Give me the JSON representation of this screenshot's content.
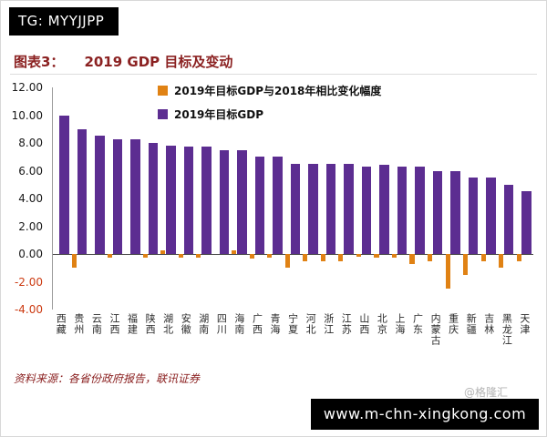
{
  "tg_badge": "TG: MYYJJPP",
  "footer_url": "www.m-chn-xingkong.com",
  "chart": {
    "label_prefix": "图表3：",
    "title": "2019 GDP 目标及变动",
    "source": "资料来源：各省份政府报告，联讯证券",
    "watermark": "@格隆汇"
  },
  "chart_data": {
    "type": "bar",
    "title": "2019 GDP 目标及变动",
    "xlabel": "",
    "ylabel": "",
    "ylim": [
      -4,
      12
    ],
    "yticks": [
      12,
      10,
      8,
      6,
      4,
      2,
      0,
      -2,
      -4
    ],
    "ytick_labels": [
      "12.00",
      "10.00",
      "8.00",
      "6.00",
      "4.00",
      "2.00",
      "0.00",
      "-2.00",
      "-4.00"
    ],
    "grid": false,
    "legend_position": "top",
    "categories": [
      "西藏",
      "贵州",
      "云南",
      "江西",
      "福建",
      "陕西",
      "湖北",
      "安徽",
      "湖南",
      "四川",
      "海南",
      "广西",
      "青海",
      "宁夏",
      "河北",
      "浙江",
      "江苏",
      "山西",
      "北京",
      "上海",
      "广东",
      "内蒙古",
      "重庆",
      "新疆",
      "吉林",
      "黑龙江",
      "天津"
    ],
    "series": [
      {
        "name": "2019年目标GDP与2018年相比变化幅度",
        "color": "#e08214",
        "values": [
          0,
          -1,
          0,
          -0.25,
          0,
          -0.25,
          0.25,
          -0.25,
          -0.25,
          0,
          0.25,
          -0.3,
          -0.25,
          -1,
          -0.5,
          -0.5,
          -0.5,
          -0.2,
          -0.25,
          -0.25,
          -0.75,
          -0.5,
          -2.5,
          -1.5,
          -0.5,
          -1,
          -0.5
        ]
      },
      {
        "name": "2019年目标GDP",
        "color": "#5c2d91",
        "values": [
          10,
          9,
          8.5,
          8.25,
          8.25,
          8,
          7.8,
          7.75,
          7.75,
          7.5,
          7.5,
          7,
          7,
          6.5,
          6.5,
          6.5,
          6.5,
          6.3,
          6.4,
          6.3,
          6.3,
          6,
          6,
          5.5,
          5.5,
          5,
          4.5
        ]
      }
    ]
  }
}
